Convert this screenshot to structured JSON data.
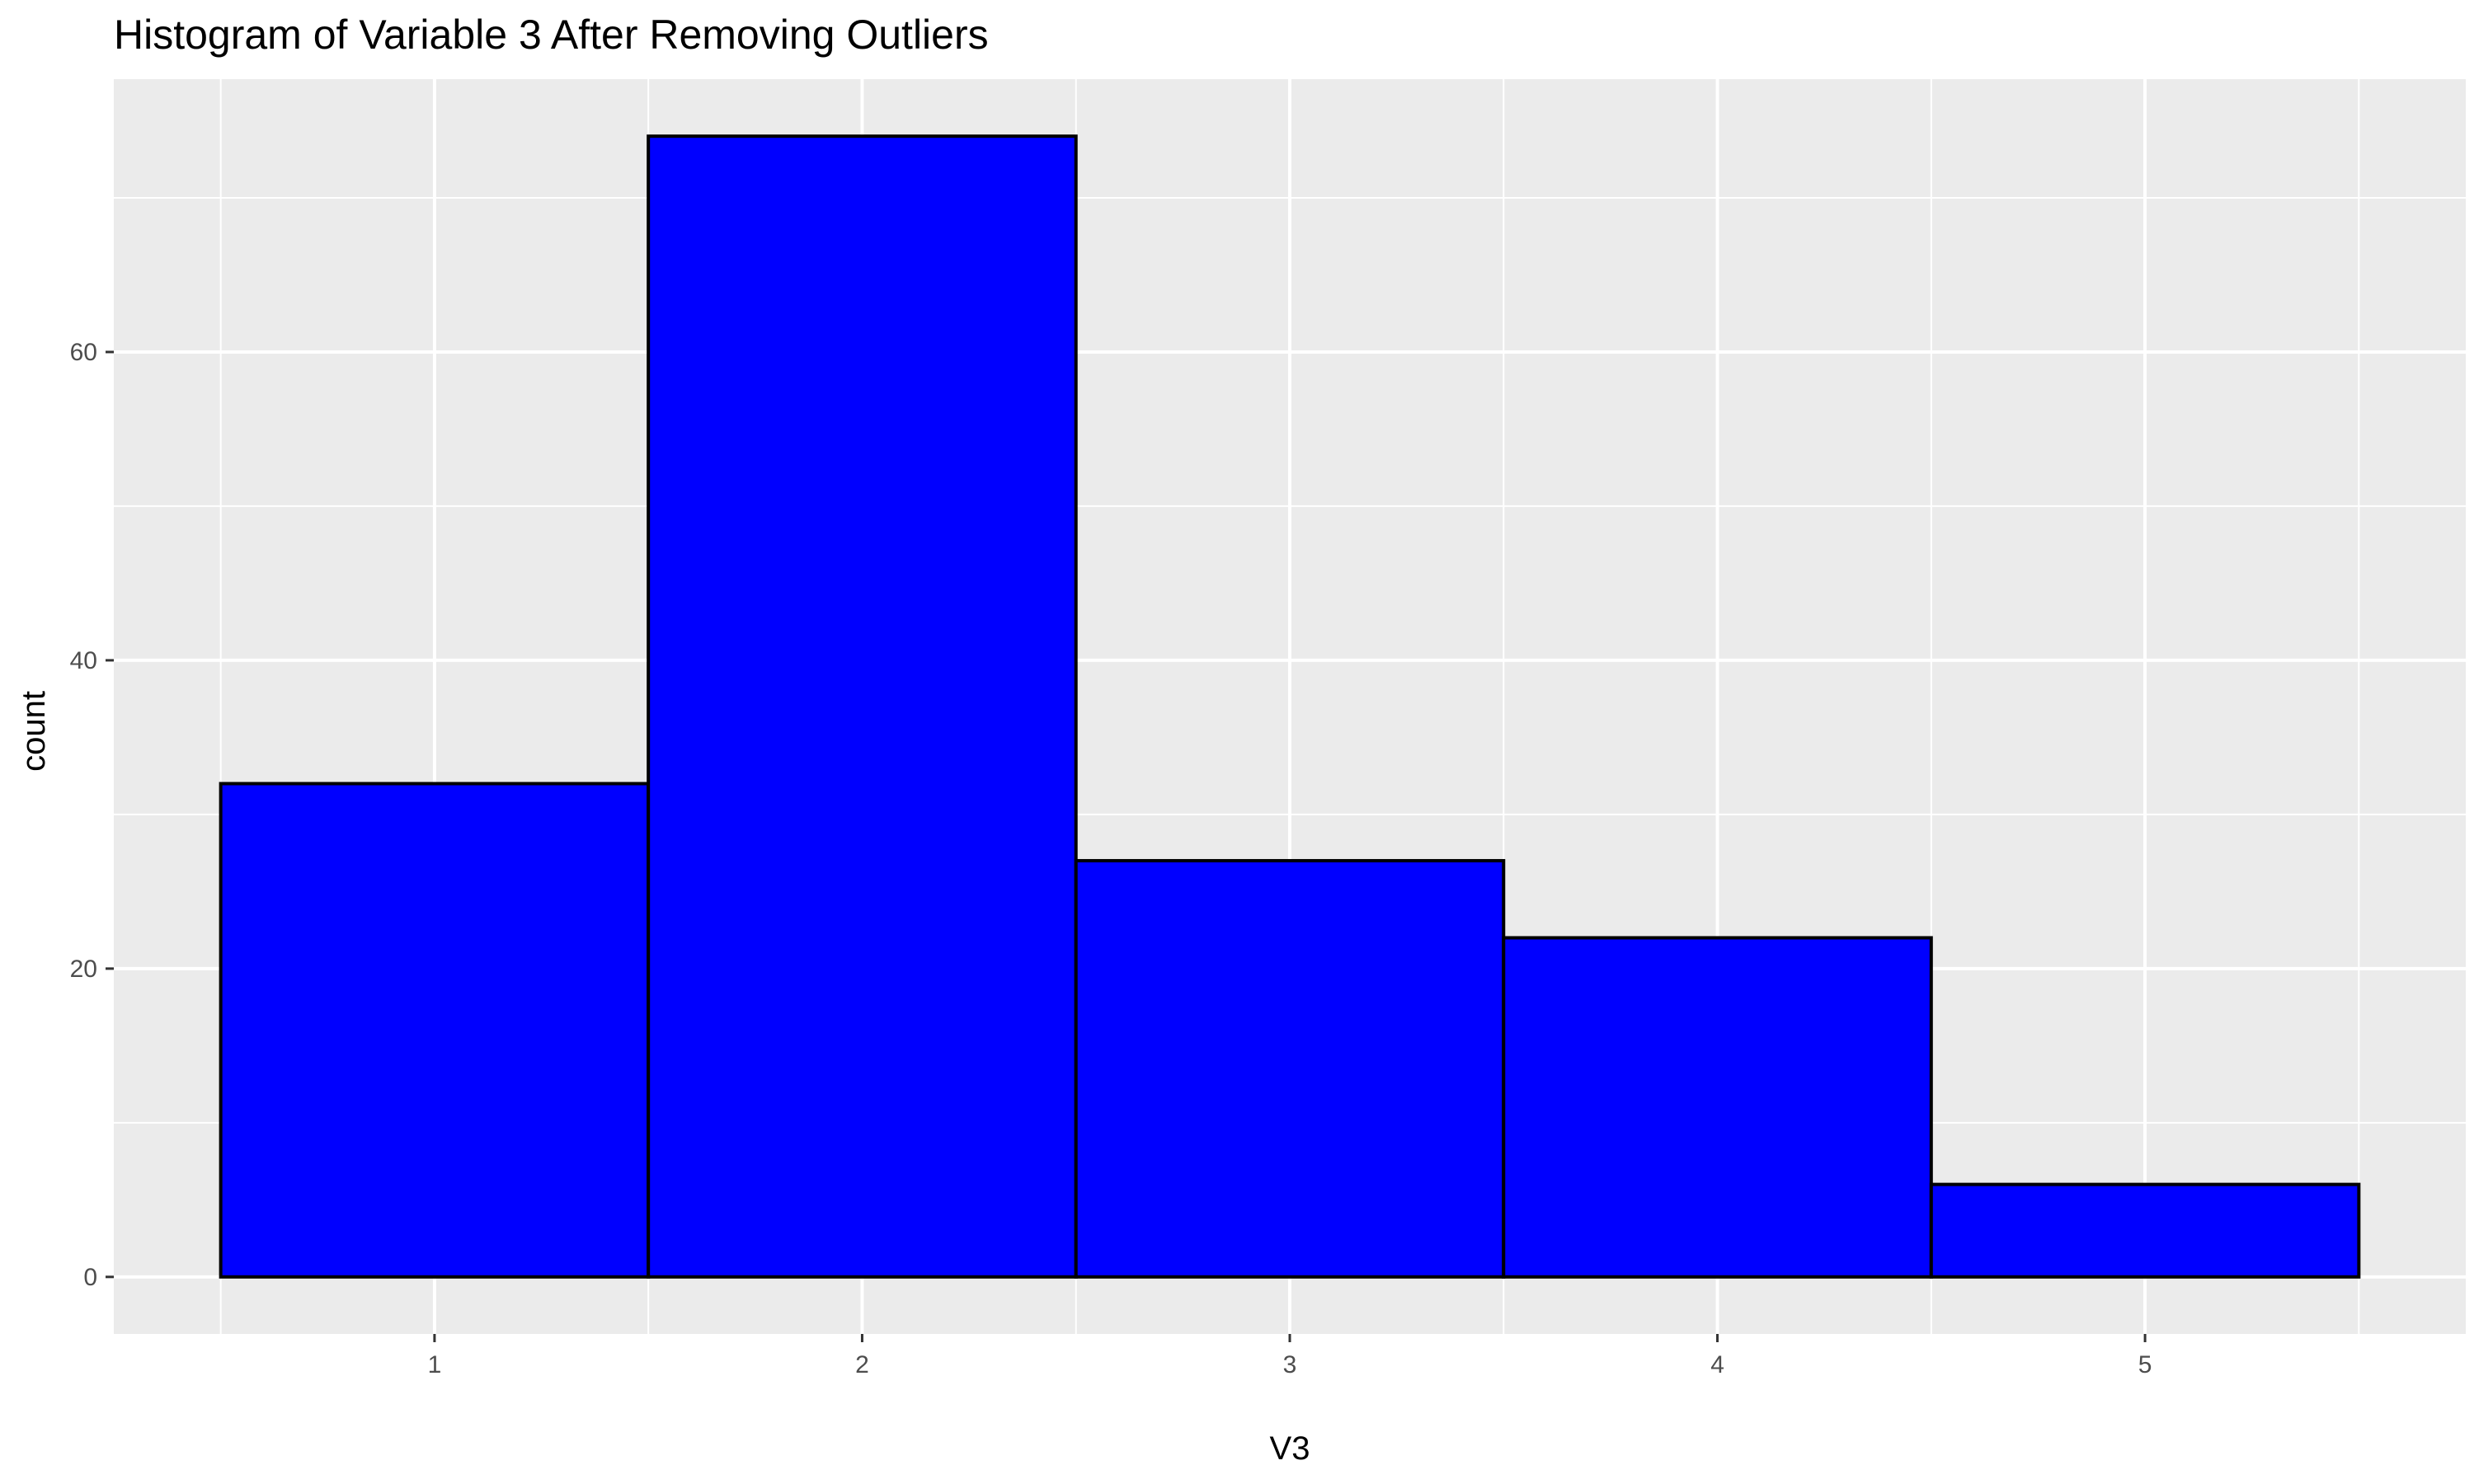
{
  "chart_data": {
    "type": "bar",
    "title": "Histogram of Variable 3 After Removing Outliers",
    "xlabel": "V3",
    "ylabel": "count",
    "bins": [
      {
        "x": 1,
        "xmin": 0.5,
        "xmax": 1.5,
        "count": 32
      },
      {
        "x": 2,
        "xmin": 1.5,
        "xmax": 2.5,
        "count": 74
      },
      {
        "x": 3,
        "xmin": 2.5,
        "xmax": 3.5,
        "count": 27
      },
      {
        "x": 4,
        "xmin": 3.5,
        "xmax": 4.5,
        "count": 22
      },
      {
        "x": 5,
        "xmin": 4.5,
        "xmax": 5.5,
        "count": 6
      }
    ],
    "xlim": [
      0.25,
      5.75
    ],
    "ylim": [
      -3.7,
      77.7
    ],
    "xticks": [
      1,
      2,
      3,
      4,
      5
    ],
    "yticks": [
      0,
      20,
      40,
      60
    ],
    "grid": true,
    "colors": {
      "fill": "#0000ff",
      "outline": "#000000",
      "panel": "#ebebeb",
      "grid": "#ffffff"
    }
  }
}
